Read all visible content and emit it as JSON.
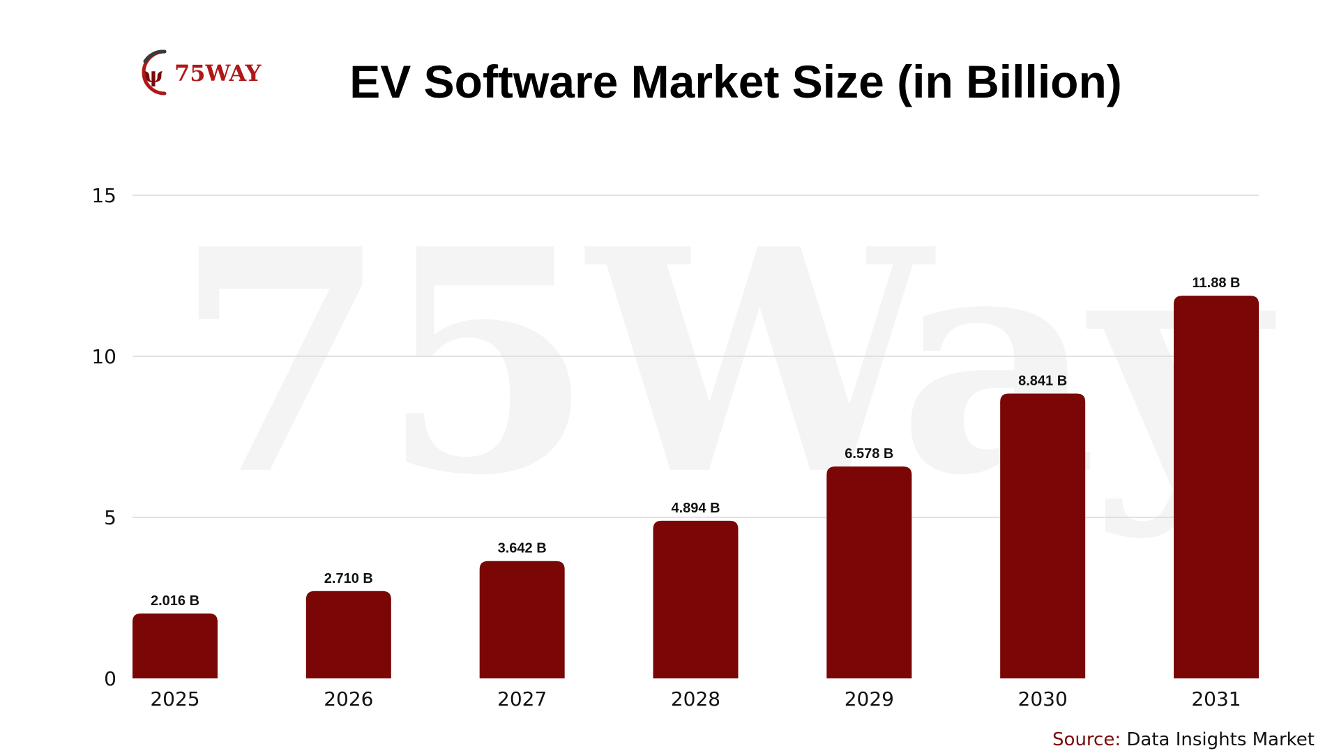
{
  "brand": {
    "logo_text": "75WAY",
    "logo_mark": "ψ",
    "watermark_text": "75Way",
    "colors": {
      "logo_dark": "#3a3a3a",
      "logo_red": "#b01818"
    }
  },
  "source": {
    "prefix": "Source:",
    "name": "Data Insights Market"
  },
  "colors": {
    "bar": "#7a0606",
    "grid": "#d9d9d9",
    "text": "#111111",
    "source_prefix": "#7a0a0a"
  },
  "chart_data": {
    "type": "bar",
    "title": "EV Software Market Size (in Billion)",
    "categories": [
      "2025",
      "2026",
      "2027",
      "2028",
      "2029",
      "2030",
      "2031"
    ],
    "values": [
      2.016,
      2.71,
      3.642,
      4.894,
      6.578,
      8.841,
      11.88
    ],
    "data_labels": [
      "2.016 B",
      "2.710 B",
      "3.642 B",
      "4.894 B",
      "6.578 B",
      "8.841 B",
      "11.88 B"
    ],
    "xlabel": "",
    "ylabel": "",
    "ylim": [
      0,
      15
    ],
    "yticks": [
      0,
      5,
      10,
      15
    ],
    "grid": true,
    "legend": "none"
  }
}
